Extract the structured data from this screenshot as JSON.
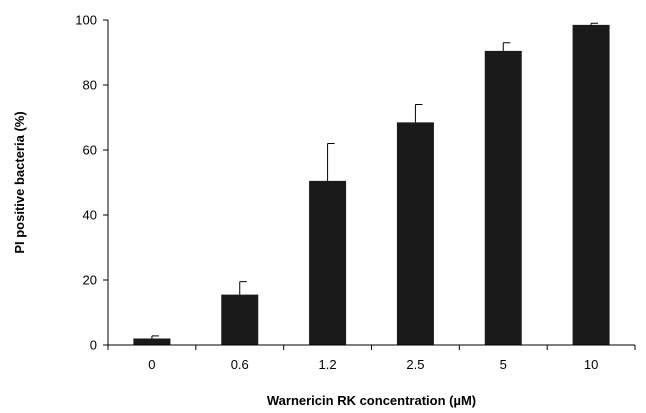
{
  "chart_data": {
    "type": "bar",
    "title": "",
    "xlabel": "Warnericin RK concentration (µM)",
    "ylabel": "PI positive bacteria (%)",
    "categories": [
      "0",
      "0.6",
      "1.2",
      "2.5",
      "5",
      "10"
    ],
    "values": [
      2,
      15.5,
      50.5,
      68.5,
      90.5,
      98.5
    ],
    "error": [
      0.8,
      4,
      11.5,
      5.5,
      2.5,
      0.5
    ],
    "ylim": [
      0,
      100
    ],
    "yticks": [
      "0",
      "20",
      "40",
      "60",
      "80",
      "100"
    ],
    "grid": false,
    "legend": "none",
    "bar_color": "#1a1a1a"
  }
}
